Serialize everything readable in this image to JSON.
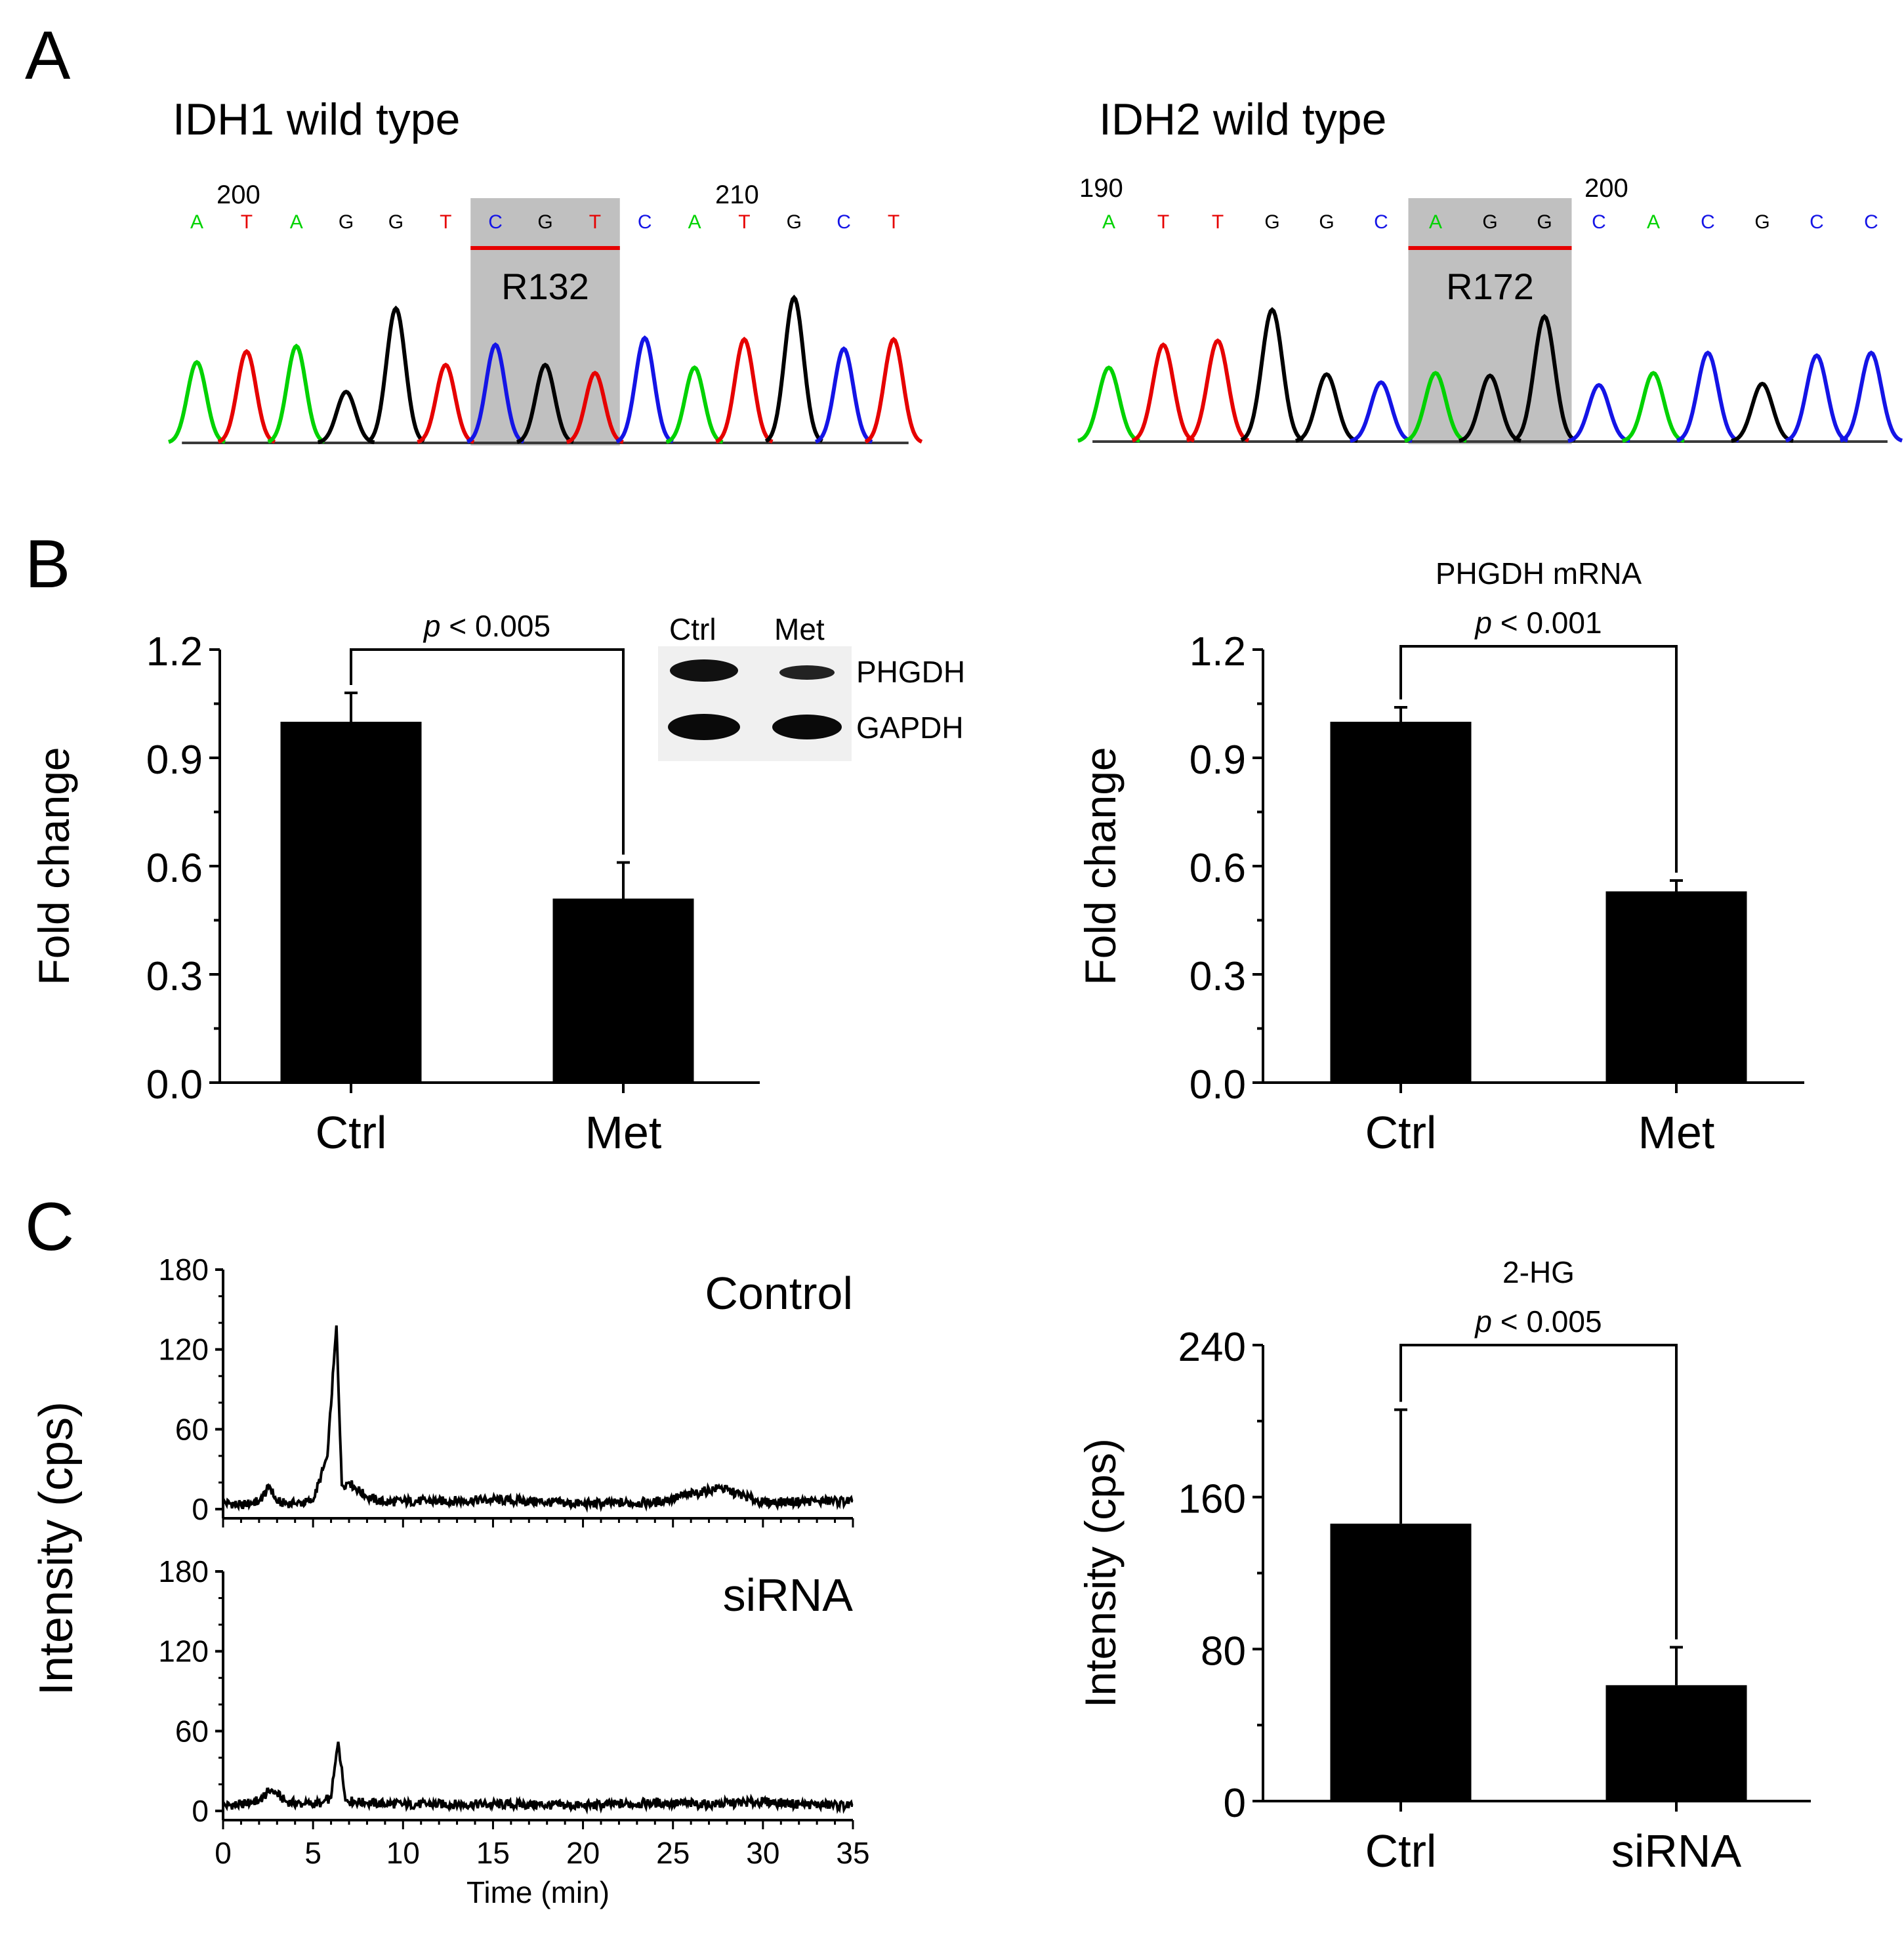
{
  "colors": {
    "A": "#00d200",
    "C": "#1414e6",
    "G": "#000000",
    "T": "#e60000",
    "highlight": "#c0c0c0",
    "bar": "#000000"
  },
  "panel_labels": {
    "a": "A",
    "b": "B",
    "c": "C"
  },
  "chart_data": [
    {
      "type": "sequence_trace",
      "title": "IDH1 wild type",
      "position_labels": [
        "200",
        "210"
      ],
      "bases": [
        "A",
        "T",
        "A",
        "G",
        "G",
        "T",
        "C",
        "G",
        "T",
        "C",
        "A",
        "T",
        "G",
        "C",
        "T"
      ],
      "peak_heights": [
        0.6,
        0.68,
        0.72,
        0.38,
        1.0,
        0.58,
        0.73,
        0.58,
        0.52,
        0.78,
        0.56,
        0.77,
        1.08,
        0.7,
        0.77
      ],
      "highlight_codon": "R132",
      "highlight_range": [
        6,
        8
      ]
    },
    {
      "type": "sequence_trace",
      "title": "IDH2 wild type",
      "position_labels": [
        "190",
        "200"
      ],
      "bases": [
        "A",
        "T",
        "T",
        "G",
        "G",
        "C",
        "A",
        "G",
        "G",
        "C",
        "A",
        "C",
        "G",
        "C",
        "C"
      ],
      "peak_heights": [
        0.55,
        0.72,
        0.75,
        0.98,
        0.5,
        0.44,
        0.51,
        0.49,
        0.93,
        0.42,
        0.51,
        0.66,
        0.43,
        0.64,
        0.66
      ],
      "highlight_codon": "R172",
      "highlight_range": [
        6,
        8
      ]
    },
    {
      "type": "bar",
      "title": "",
      "categories": [
        "Ctrl",
        "Met"
      ],
      "values": [
        1.0,
        0.51
      ],
      "errors": [
        0.08,
        0.1
      ],
      "ylabel": "Fold change",
      "ylim": [
        0,
        1.2
      ],
      "yticks": [
        "0.0",
        "0.3",
        "0.6",
        "0.9",
        "1.2"
      ],
      "significance": "< 0.005",
      "significance_italic": "p",
      "inset_blot": {
        "lanes": [
          "Ctrl",
          "Met"
        ],
        "bands": [
          "PHGDH",
          "GAPDH"
        ]
      }
    },
    {
      "type": "bar",
      "title": "PHGDH mRNA",
      "categories": [
        "Ctrl",
        "Met"
      ],
      "values": [
        1.0,
        0.53
      ],
      "errors": [
        0.04,
        0.03
      ],
      "ylabel": "Fold change",
      "ylim": [
        0,
        1.2
      ],
      "yticks": [
        "0.0",
        "0.3",
        "0.6",
        "0.9",
        "1.2"
      ],
      "significance": "< 0.001",
      "significance_italic": "p"
    },
    {
      "type": "line",
      "title": "Control",
      "x": [
        0,
        1,
        2,
        2.6,
        3,
        4,
        5,
        5.8,
        6.3,
        6.6,
        7,
        8,
        9,
        10,
        12,
        15,
        20,
        24,
        27.6,
        30,
        33,
        35
      ],
      "y": [
        5,
        3,
        6,
        17,
        5,
        4,
        6,
        40,
        138,
        18,
        20,
        9,
        5,
        6,
        6,
        7,
        4,
        5,
        16,
        5,
        6,
        6
      ],
      "ylim": [
        0,
        180
      ],
      "yticks": [
        "0",
        "60",
        "120",
        "180"
      ],
      "xlim": [
        0,
        35
      ]
    },
    {
      "type": "line",
      "title": "siRNA",
      "x": [
        0,
        1,
        2,
        2.7,
        3.5,
        4.5,
        5.5,
        6,
        6.4,
        6.8,
        8,
        10,
        15,
        20,
        24,
        27,
        30,
        32,
        35
      ],
      "y": [
        4,
        5,
        8,
        16,
        7,
        5,
        6,
        10,
        52,
        8,
        6,
        5,
        5,
        4,
        6,
        5,
        7,
        5,
        4
      ],
      "ylim": [
        0,
        180
      ],
      "yticks": [
        "0",
        "60",
        "120",
        "180"
      ],
      "xlim": [
        0,
        35
      ],
      "xticks": [
        "0",
        "5",
        "10",
        "15",
        "20",
        "25",
        "30",
        "35"
      ],
      "xlabel": "Time (min)",
      "ylabel": "Intensity (cps)"
    },
    {
      "type": "bar",
      "title": "2-HG",
      "categories": [
        "Ctrl",
        "siRNA"
      ],
      "values": [
        146,
        61
      ],
      "errors": [
        60,
        20
      ],
      "ylabel": "Intensity (cps)",
      "ylim": [
        0,
        240
      ],
      "yticks": [
        "0",
        "80",
        "160",
        "240"
      ],
      "significance": "< 0.005",
      "significance_italic": "p"
    }
  ]
}
